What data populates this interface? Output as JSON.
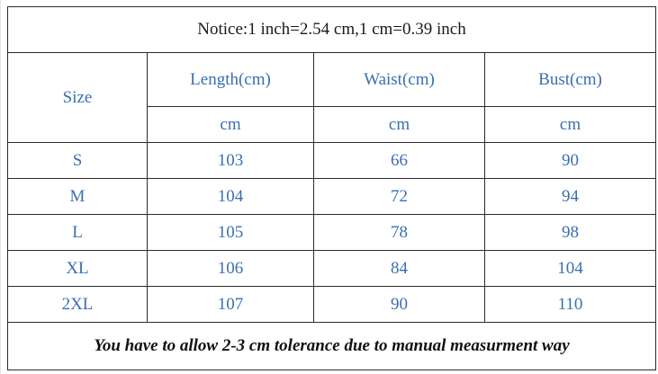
{
  "notice": "Notice:1 inch=2.54 cm,1 cm=0.39 inch",
  "headers": {
    "size": "Size",
    "length": "Length(cm)",
    "waist": "Waist(cm)",
    "bust": "Bust(cm)"
  },
  "units": {
    "length": "cm",
    "waist": "cm",
    "bust": "cm"
  },
  "rows": [
    {
      "size": "S",
      "length": "103",
      "waist": "66",
      "bust": "90"
    },
    {
      "size": "M",
      "length": "104",
      "waist": "72",
      "bust": "94"
    },
    {
      "size": "L",
      "length": "105",
      "waist": "78",
      "bust": "98"
    },
    {
      "size": "XL",
      "length": "106",
      "waist": "84",
      "bust": "104"
    },
    {
      "size": "2XL",
      "length": "107",
      "waist": "90",
      "bust": "110"
    }
  ],
  "footer": "You have to allow 2-3 cm tolerance due to manual measurment way",
  "colors": {
    "text_blue": "#3a6fb0",
    "border": "#2b2b2b",
    "notice_text": "#1a1a1a"
  }
}
